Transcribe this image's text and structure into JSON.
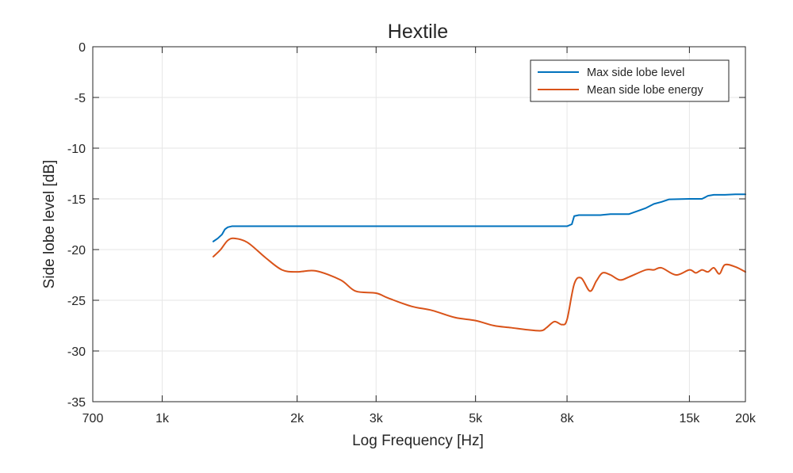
{
  "chart_data": {
    "type": "line",
    "title": "Hextile",
    "xlabel": "Log Frequency [Hz]",
    "ylabel": "Side lobe level [dB]",
    "x_scale": "log",
    "xlim": [
      700,
      20000
    ],
    "ylim": [
      -35,
      0
    ],
    "grid": true,
    "legend_position": "top-right",
    "x_ticks": [
      700,
      1000,
      2000,
      3000,
      5000,
      8000,
      15000,
      20000
    ],
    "x_tick_labels": [
      "700",
      "1k",
      "2k",
      "3k",
      "5k",
      "8k",
      "15k",
      "20k"
    ],
    "y_ticks": [
      0,
      -5,
      -10,
      -15,
      -20,
      -25,
      -30,
      -35
    ],
    "y_tick_labels": [
      "0",
      "-5",
      "-10",
      "-15",
      "-20",
      "-25",
      "-30",
      "-35"
    ],
    "series": [
      {
        "name": "Max side lobe level",
        "color": "#0072BD",
        "x": [
          1300,
          1330,
          1360,
          1380,
          1400,
          1430,
          1500,
          2000,
          3000,
          5000,
          7000,
          8000,
          8200,
          8300,
          8500,
          9000,
          9500,
          10000,
          11000,
          11500,
          12000,
          12500,
          13000,
          13500,
          15000,
          16000,
          16500,
          17000,
          18000,
          19000,
          20000
        ],
        "y": [
          -19.2,
          -18.9,
          -18.5,
          -18.0,
          -17.8,
          -17.7,
          -17.7,
          -17.7,
          -17.7,
          -17.7,
          -17.7,
          -17.7,
          -17.5,
          -16.7,
          -16.6,
          -16.6,
          -16.6,
          -16.5,
          -16.5,
          -16.2,
          -15.9,
          -15.5,
          -15.3,
          -15.05,
          -15.0,
          -15.0,
          -14.7,
          -14.6,
          -14.6,
          -14.55,
          -14.55
        ]
      },
      {
        "name": "Mean side lobe energy",
        "color": "#D95319",
        "x": [
          1300,
          1350,
          1400,
          1450,
          1550,
          1700,
          1850,
          2000,
          2200,
          2500,
          2700,
          3000,
          3200,
          3600,
          4000,
          4500,
          5000,
          5500,
          6000,
          6500,
          7000,
          7200,
          7500,
          7800,
          8000,
          8300,
          8600,
          9000,
          9300,
          9600,
          10000,
          10500,
          11000,
          12000,
          12500,
          13000,
          14000,
          15000,
          15500,
          16000,
          16500,
          17000,
          17500,
          18000,
          19000,
          20000
        ],
        "y": [
          -20.7,
          -20.0,
          -19.1,
          -18.9,
          -19.3,
          -20.8,
          -22.0,
          -22.2,
          -22.1,
          -23.0,
          -24.1,
          -24.3,
          -24.8,
          -25.6,
          -26.0,
          -26.7,
          -27.0,
          -27.5,
          -27.7,
          -27.9,
          -28.0,
          -27.7,
          -27.1,
          -27.4,
          -26.9,
          -23.4,
          -22.8,
          -24.1,
          -23.1,
          -22.3,
          -22.5,
          -23.0,
          -22.7,
          -22.0,
          -22.0,
          -21.8,
          -22.5,
          -22.0,
          -22.3,
          -22.0,
          -22.2,
          -21.8,
          -22.4,
          -21.5,
          -21.7,
          -22.2
        ]
      }
    ]
  }
}
